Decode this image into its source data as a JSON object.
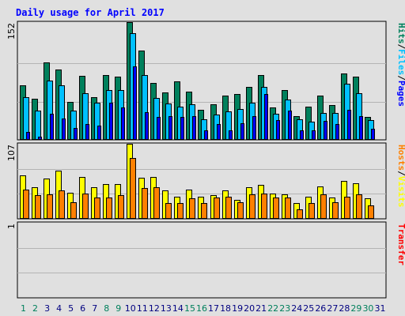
{
  "chart_data": {
    "type": "bar",
    "title": "Daily usage for April 2017",
    "categories": [
      "1",
      "2",
      "3",
      "4",
      "5",
      "6",
      "7",
      "8",
      "9",
      "10",
      "11",
      "12",
      "13",
      "14",
      "15",
      "16",
      "17",
      "18",
      "19",
      "20",
      "21",
      "22",
      "23",
      "24",
      "25",
      "26",
      "27",
      "28",
      "29",
      "30",
      "31"
    ],
    "weekend_days": [
      "1",
      "2",
      "8",
      "9",
      "15",
      "16",
      "22",
      "23",
      "29",
      "30"
    ],
    "panels": [
      {
        "id": "hits-files-pages",
        "ylim": [
          0,
          152
        ],
        "y_tick_label": "152",
        "right_label": {
          "parts": [
            "Hits",
            "/",
            "Files",
            "/",
            "Pages"
          ]
        },
        "series": [
          {
            "name": "Hits",
            "color": "#00805c",
            "values": [
              70,
              53,
              100,
              91,
              49,
              83,
              55,
              84,
              82,
              152,
              115,
              73,
              61,
              75,
              62,
              39,
              46,
              57,
              59,
              68,
              84,
              42,
              64,
              31,
              43,
              57,
              45,
              86,
              82,
              30,
              0
            ]
          },
          {
            "name": "Files",
            "color": "#00c0ff",
            "values": [
              55,
              38,
              77,
              70,
              38,
              60,
              48,
              64,
              64,
              138,
              84,
              54,
              47,
              43,
              46,
              27,
              33,
              37,
              40,
              48,
              68,
              34,
              52,
              27,
              23,
              35,
              35,
              72,
              60,
              25,
              0
            ]
          },
          {
            "name": "Pages",
            "color": "#0000ff",
            "values": [
              10,
              4,
              34,
              28,
              15,
              20,
              18,
              48,
              42,
              95,
              36,
              30,
              31,
              30,
              31,
              12,
              20,
              12,
              21,
              31,
              59,
              26,
              38,
              12,
              12,
              24,
              20,
              39,
              31,
              14,
              0
            ]
          }
        ]
      },
      {
        "id": "hosts-visits",
        "ylim": [
          0,
          107
        ],
        "y_tick_label": "107",
        "right_label": {
          "parts": [
            "Hosts",
            "/",
            "Visits"
          ]
        },
        "series": [
          {
            "name": "Visits",
            "color": "#ffff00",
            "values": [
              62,
              45,
              58,
              69,
              37,
              60,
              45,
              50,
              49,
              107,
              59,
              60,
              41,
              32,
              42,
              32,
              34,
              40,
              27,
              45,
              48,
              36,
              35,
              22,
              31,
              46,
              30,
              54,
              51,
              29,
              0
            ]
          },
          {
            "name": "Hosts",
            "color": "#ff8000",
            "values": [
              42,
              34,
              35,
              41,
              24,
              36,
              30,
              30,
              34,
              87,
              44,
              45,
              23,
              23,
              29,
              23,
              30,
              32,
              24,
              35,
              36,
              30,
              30,
              13,
              23,
              35,
              24,
              32,
              35,
              19,
              0
            ]
          }
        ]
      },
      {
        "id": "transfer",
        "ylim": [
          0,
          1
        ],
        "y_tick_label": "1",
        "right_label": {
          "parts": [
            "Transfer"
          ]
        },
        "series": [
          {
            "name": "Transfer",
            "color": "#ff0000",
            "values": []
          }
        ]
      }
    ],
    "colors": {
      "title": "#0000ff",
      "slash": "#000000",
      "weekday_tick": "#000080",
      "weekend_tick": "#00805c",
      "panel_background": "#e0e0e0",
      "grid": "#b4b4b4"
    }
  }
}
